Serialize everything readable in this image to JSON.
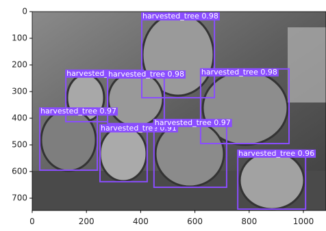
{
  "chart_data": {
    "type": "detections",
    "xlim": [
      0,
      1083
    ],
    "ylim": [
      745,
      0
    ],
    "xticks": [
      0,
      200,
      400,
      600,
      800,
      1000
    ],
    "yticks": [
      0,
      100,
      200,
      300,
      400,
      500,
      600,
      700
    ],
    "box_color": "#8a4dff",
    "boxes": [
      {
        "label": "harvested_tree 0.98",
        "x0": 404,
        "y0": 5,
        "x1": 672,
        "y1": 323
      },
      {
        "label": "harvested_tree 0.97",
        "x0": 124,
        "y0": 220,
        "x1": 278,
        "y1": 413
      },
      {
        "label": "harvested_tree 0.98",
        "x0": 278,
        "y0": 223,
        "x1": 487,
        "y1": 420
      },
      {
        "label": "harvested_tree 0.98",
        "x0": 621,
        "y0": 215,
        "x1": 947,
        "y1": 495
      },
      {
        "label": "harvested_tree 0.97",
        "x0": 28,
        "y0": 362,
        "x1": 240,
        "y1": 595
      },
      {
        "label": "harvested_tree 0.91",
        "x0": 250,
        "y0": 425,
        "x1": 424,
        "y1": 638
      },
      {
        "label": "harvested_tree 0.97",
        "x0": 449,
        "y0": 405,
        "x1": 717,
        "y1": 659
      },
      {
        "label": "harvested_tree 0.96",
        "x0": 758,
        "y0": 520,
        "x1": 1008,
        "y1": 741
      }
    ]
  }
}
